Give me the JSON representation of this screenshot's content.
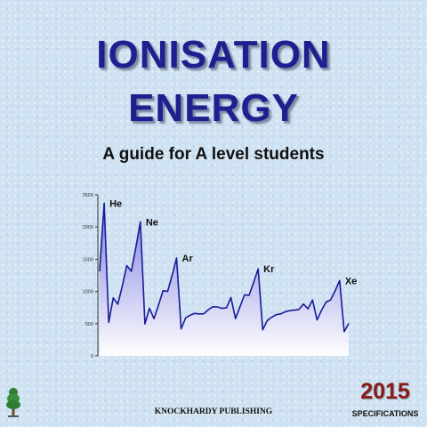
{
  "cover": {
    "title_line1": "IONISATION",
    "title_line2": "ENERGY",
    "subtitle": "A guide for A level students",
    "year": "2015",
    "specifications": "SPECIFICATIONS",
    "publisher": "KNOCKHARDY PUBLISHING",
    "logo_icon": "tree-icon"
  },
  "colors": {
    "title": "#1f1f8f",
    "year": "#8b1a1a",
    "line": "#1a1a99",
    "fill_top": "#7d7de0",
    "fill_bottom": "#ffffff",
    "background": "#cfe2f2"
  },
  "chart_data": {
    "type": "area",
    "title": "",
    "xlabel": "",
    "ylabel": "",
    "ylim": [
      0,
      2500
    ],
    "yticks": [
      0,
      500,
      1000,
      1500,
      2000,
      2500
    ],
    "grid": false,
    "series": [
      {
        "values": [
          1312,
          2372,
          520,
          900,
          801,
          1086,
          1402,
          1314,
          1681,
          2081,
          496,
          738,
          578,
          787,
          1012,
          1000,
          1251,
          1521,
          419,
          590,
          633,
          659,
          651,
          653,
          717,
          762,
          760,
          737,
          745,
          906,
          579,
          762,
          947,
          941,
          1140,
          1351,
          403,
          549,
          600,
          640,
          652,
          684,
          702,
          710,
          720,
          804,
          731,
          868,
          558,
          709,
          834,
          869,
          1008,
          1170,
          376,
          503
        ]
      }
    ],
    "annotations": [
      {
        "label": "He",
        "index": 1
      },
      {
        "label": "Ne",
        "index": 9
      },
      {
        "label": "Ar",
        "index": 17
      },
      {
        "label": "Kr",
        "index": 35
      },
      {
        "label": "Xe",
        "index": 53
      }
    ]
  }
}
